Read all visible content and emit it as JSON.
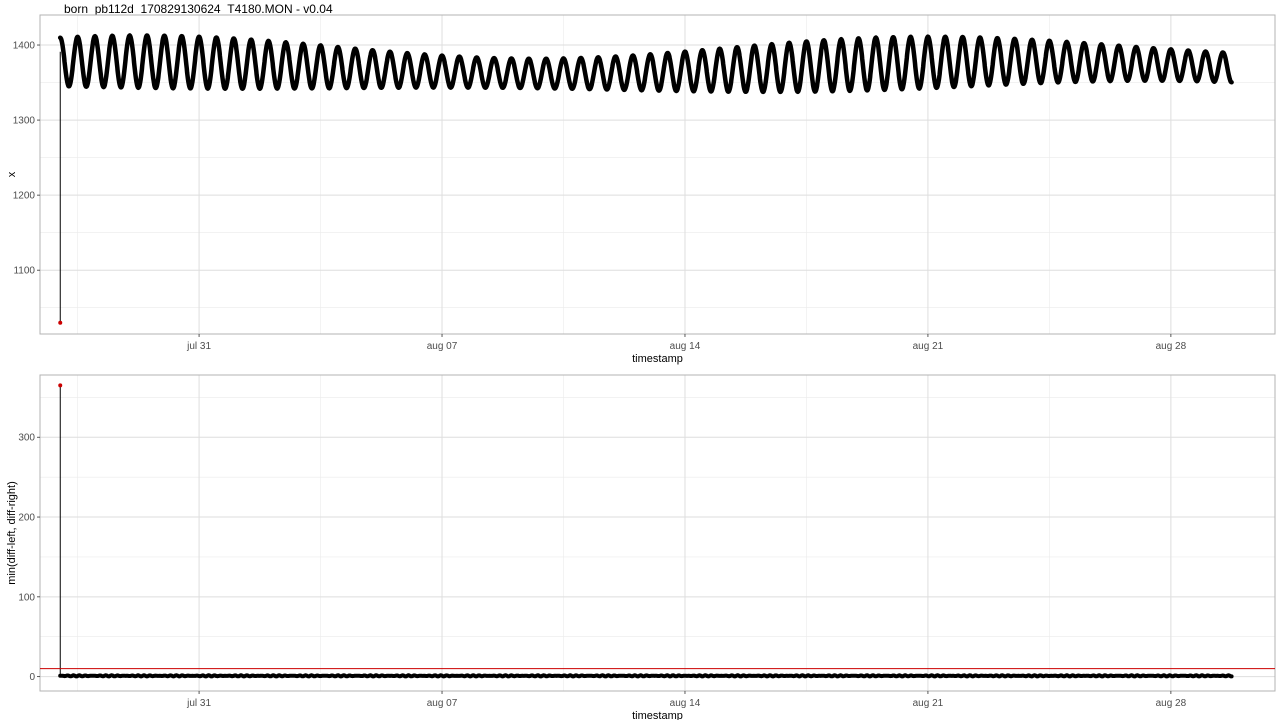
{
  "title": "born_pb112d_170829130624_T4180.MON - v0.04",
  "chart_data": [
    {
      "type": "line",
      "xlabel": "timestamp",
      "ylabel": "x",
      "x_ticks": [
        "jul 31",
        "aug 07",
        "aug 14",
        "aug 21",
        "aug 28"
      ],
      "x_tick_values": [
        "2017-07-31",
        "2017-08-07",
        "2017-08-14",
        "2017-08-21",
        "2017-08-28"
      ],
      "xlim": [
        "2017-07-26 10:00",
        "2017-08-31 00:00"
      ],
      "ylim": [
        1015,
        1440
      ],
      "y_ticks": [
        1100,
        1200,
        1300,
        1400
      ],
      "grid": true,
      "background": "white",
      "series": [
        {
          "color": "#000000",
          "x_start": "2017-07-27 00:00",
          "x_end": "2017-08-29 18:00",
          "period_days": 0.5,
          "mean": 1370,
          "amplitude": 35
        }
      ],
      "outlier": {
        "x": "2017-07-27 00:00",
        "y": 1030,
        "color": "#cc0000"
      }
    },
    {
      "type": "line",
      "xlabel": "timestamp",
      "ylabel": "min(diff-left, diff-right)",
      "x_ticks": [
        "jul 31",
        "aug 07",
        "aug 14",
        "aug 21",
        "aug 28"
      ],
      "x_tick_values": [
        "2017-07-31",
        "2017-08-07",
        "2017-08-14",
        "2017-08-21",
        "2017-08-28"
      ],
      "xlim": [
        "2017-07-26 10:00",
        "2017-08-31 00:00"
      ],
      "ylim": [
        -18,
        378
      ],
      "y_ticks": [
        0,
        100,
        200,
        300
      ],
      "grid": true,
      "threshold": {
        "y": 10,
        "color": "#cc0000"
      },
      "series": [
        {
          "color": "#000000",
          "x_start": "2017-07-27 00:00",
          "x_end": "2017-08-29 18:00",
          "baseline": 1
        }
      ],
      "outlier": {
        "x": "2017-07-27 00:00",
        "y": 365,
        "color": "#cc0000"
      }
    }
  ]
}
